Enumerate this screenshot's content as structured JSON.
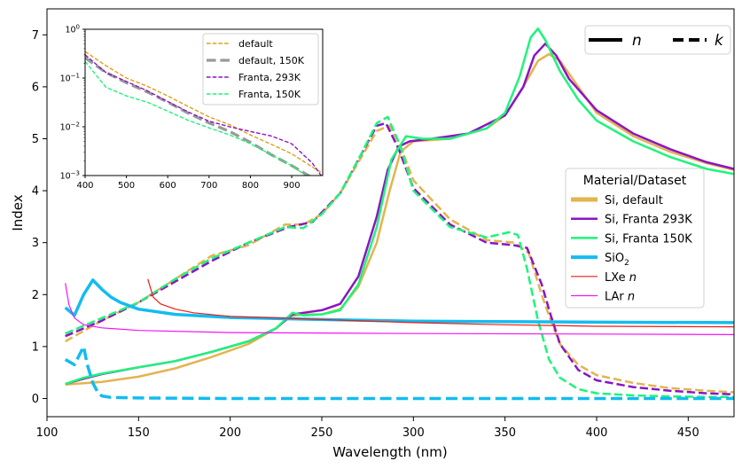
{
  "chart_data": [
    {
      "type": "line",
      "xlabel": "Wavelength (nm)",
      "ylabel": "Index",
      "xlim": [
        100,
        475
      ],
      "ylim": [
        -0.35,
        7.5
      ],
      "xticks": [
        100,
        150,
        200,
        250,
        300,
        350,
        400,
        450
      ],
      "yticks": [
        0,
        1,
        2,
        3,
        4,
        5,
        6,
        7
      ],
      "style_legend": {
        "position": "top-right",
        "entries": [
          {
            "label": "n",
            "style": "solid"
          },
          {
            "label": "k",
            "style": "dashed"
          }
        ]
      },
      "material_legend": {
        "title": "Material/Dataset",
        "position": "center-right",
        "entries": [
          {
            "label": "Si, default",
            "color": "#e3b44f"
          },
          {
            "label": "Si, Franta 293K",
            "color": "#8b14c4"
          },
          {
            "label": "Si, Franta 150K",
            "color": "#1ef47a"
          },
          {
            "label": "SiO",
            "sub": "2",
            "color": "#12bcf0"
          },
          {
            "label": "LXe ",
            "italic": "n",
            "color": "#ee1b14"
          },
          {
            "label": "LAr ",
            "italic": "n",
            "color": "#f414f4"
          }
        ]
      },
      "series": [
        {
          "name": "Si, default n",
          "color": "#e3b44f",
          "dash": "solid",
          "x": [
            110,
            130,
            150,
            170,
            190,
            210,
            225,
            232,
            240,
            250,
            260,
            270,
            280,
            287,
            293,
            300,
            320,
            340,
            350,
            360,
            368,
            374,
            380,
            390,
            400,
            420,
            440,
            460,
            475
          ],
          "y": [
            0.27,
            0.32,
            0.42,
            0.58,
            0.8,
            1.05,
            1.35,
            1.58,
            1.62,
            1.62,
            1.72,
            2.15,
            3.0,
            4.0,
            4.75,
            4.95,
            5.0,
            5.2,
            5.45,
            6.0,
            6.5,
            6.63,
            6.5,
            6.0,
            5.5,
            5.05,
            4.75,
            4.53,
            4.4
          ]
        },
        {
          "name": "Si, default k",
          "color": "#e3b44f",
          "dash": "dashed",
          "x": [
            110,
            130,
            150,
            170,
            190,
            210,
            230,
            240,
            250,
            260,
            270,
            280,
            287,
            293,
            300,
            320,
            340,
            355,
            363,
            370,
            375,
            380,
            390,
            400,
            420,
            440,
            460,
            475
          ],
          "y": [
            1.1,
            1.5,
            1.85,
            2.3,
            2.75,
            2.95,
            3.35,
            3.35,
            3.55,
            3.95,
            4.55,
            5.15,
            5.25,
            4.85,
            4.2,
            3.45,
            3.05,
            3.0,
            2.8,
            2.0,
            1.5,
            1.05,
            0.65,
            0.45,
            0.3,
            0.2,
            0.15,
            0.12
          ]
        },
        {
          "name": "Si, Franta 293K n",
          "color": "#8b14c4",
          "dash": "solid",
          "x": [
            110,
            120,
            130,
            150,
            170,
            190,
            210,
            225,
            234,
            240,
            250,
            260,
            270,
            280,
            286,
            292,
            298,
            310,
            330,
            350,
            360,
            366,
            372,
            378,
            385,
            400,
            420,
            440,
            460,
            475
          ],
          "y": [
            0.28,
            0.38,
            0.47,
            0.6,
            0.72,
            0.9,
            1.1,
            1.35,
            1.62,
            1.65,
            1.7,
            1.82,
            2.35,
            3.5,
            4.4,
            4.85,
            4.95,
            5.0,
            5.1,
            5.45,
            6.0,
            6.6,
            6.83,
            6.6,
            6.15,
            5.55,
            5.1,
            4.8,
            4.55,
            4.42
          ]
        },
        {
          "name": "Si, Franta 293K k",
          "color": "#8b14c4",
          "dash": "dashed",
          "x": [
            110,
            130,
            150,
            170,
            190,
            210,
            232,
            245,
            260,
            270,
            280,
            285,
            292,
            300,
            320,
            340,
            355,
            362,
            370,
            375,
            380,
            390,
            400,
            420,
            440,
            460,
            475
          ],
          "y": [
            1.2,
            1.5,
            1.85,
            2.25,
            2.65,
            3.0,
            3.3,
            3.4,
            3.95,
            4.6,
            5.25,
            5.3,
            4.8,
            4.05,
            3.35,
            3.0,
            2.95,
            2.9,
            2.2,
            1.6,
            1.05,
            0.55,
            0.35,
            0.22,
            0.15,
            0.1,
            0.08
          ]
        },
        {
          "name": "Si, Franta 150K n",
          "color": "#1ef47a",
          "dash": "solid",
          "x": [
            110,
            120,
            130,
            150,
            170,
            190,
            210,
            225,
            234,
            240,
            250,
            260,
            270,
            280,
            288,
            296,
            305,
            320,
            340,
            350,
            358,
            364,
            368,
            372,
            380,
            390,
            400,
            420,
            440,
            460,
            475
          ],
          "y": [
            0.28,
            0.4,
            0.48,
            0.6,
            0.72,
            0.9,
            1.1,
            1.35,
            1.65,
            1.6,
            1.62,
            1.7,
            2.2,
            3.3,
            4.6,
            5.05,
            5.0,
            5.0,
            5.2,
            5.5,
            6.2,
            6.95,
            7.12,
            6.9,
            6.3,
            5.75,
            5.35,
            4.95,
            4.65,
            4.42,
            4.32
          ]
        },
        {
          "name": "Si, Franta 150K k",
          "color": "#1ef47a",
          "dash": "dashed",
          "x": [
            110,
            130,
            150,
            170,
            190,
            210,
            230,
            240,
            250,
            260,
            270,
            280,
            286,
            293,
            300,
            320,
            340,
            352,
            357,
            362,
            368,
            374,
            380,
            390,
            400,
            420,
            440,
            460,
            475
          ],
          "y": [
            1.25,
            1.55,
            1.85,
            2.3,
            2.7,
            3.0,
            3.3,
            3.28,
            3.55,
            3.95,
            4.6,
            5.3,
            5.42,
            4.85,
            4.0,
            3.3,
            3.1,
            3.2,
            3.15,
            2.5,
            1.5,
            0.75,
            0.4,
            0.18,
            0.1,
            0.06,
            0.04,
            0.03,
            0.03
          ]
        },
        {
          "name": "SiO2 n",
          "color": "#12bcf0",
          "dash": "solid",
          "width": 3.5,
          "x": [
            110,
            115,
            120,
            125,
            130,
            135,
            140,
            150,
            170,
            200,
            250,
            300,
            400,
            475
          ],
          "y": [
            1.75,
            1.6,
            2.0,
            2.28,
            2.1,
            1.95,
            1.85,
            1.72,
            1.62,
            1.56,
            1.52,
            1.49,
            1.47,
            1.46
          ]
        },
        {
          "name": "SiO2 k",
          "color": "#12bcf0",
          "dash": "dashed",
          "width": 3.5,
          "x": [
            110,
            115,
            120,
            122,
            125,
            128,
            130,
            135,
            150,
            200,
            300,
            400,
            475
          ],
          "y": [
            0.75,
            0.65,
            1.0,
            0.65,
            0.3,
            0.1,
            0.05,
            0.02,
            0.01,
            0.0,
            0.0,
            0.0,
            0.0
          ]
        },
        {
          "name": "LXe n",
          "color": "#ee1b14",
          "dash": "solid",
          "width": 1.2,
          "x": [
            155,
            158,
            162,
            170,
            180,
            200,
            250,
            300,
            350,
            400,
            475
          ],
          "y": [
            2.3,
            1.95,
            1.82,
            1.72,
            1.65,
            1.58,
            1.52,
            1.46,
            1.42,
            1.39,
            1.38
          ]
        },
        {
          "name": "LAr n",
          "color": "#f414f4",
          "dash": "solid",
          "width": 1.2,
          "x": [
            110,
            112,
            115,
            120,
            130,
            150,
            200,
            300,
            400,
            475
          ],
          "y": [
            2.22,
            1.8,
            1.55,
            1.42,
            1.36,
            1.31,
            1.27,
            1.25,
            1.24,
            1.23
          ]
        }
      ]
    },
    {
      "type": "line",
      "inset": true,
      "yscale": "log",
      "xlim": [
        400,
        975
      ],
      "ylim": [
        0.001,
        1
      ],
      "xticks": [
        400,
        500,
        600,
        700,
        800,
        900
      ],
      "yticks": [
        {
          "base": "10",
          "exp": "0",
          "value": 1
        },
        {
          "base": "10",
          "exp": "−1",
          "value": 0.1
        },
        {
          "base": "10",
          "exp": "−2",
          "value": 0.01
        },
        {
          "base": "10",
          "exp": "−3",
          "value": 0.001
        }
      ],
      "legend": [
        "default",
        "default, 150K",
        "Franta, 293K",
        "Franta, 150K"
      ],
      "series": [
        {
          "name": "default",
          "color": "#dba21a",
          "width": 1.4,
          "x": [
            400,
            450,
            500,
            550,
            600,
            650,
            700,
            750,
            800,
            850,
            900,
            950,
            975
          ],
          "y": [
            0.35,
            0.18,
            0.1,
            0.068,
            0.043,
            0.026,
            0.016,
            0.011,
            0.0068,
            0.0044,
            0.0028,
            0.0015,
            0.0011
          ]
        },
        {
          "name": "default, 150K",
          "color": "#999999",
          "width": 3.2,
          "x": [
            400,
            450,
            500,
            550,
            600,
            650,
            700,
            750,
            800,
            850,
            900,
            950
          ],
          "y": [
            0.26,
            0.13,
            0.08,
            0.052,
            0.032,
            0.019,
            0.012,
            0.008,
            0.0048,
            0.0027,
            0.0016,
            0.0009
          ]
        },
        {
          "name": "Franta, 293K",
          "color": "#8b14c4",
          "width": 1.4,
          "x": [
            400,
            450,
            500,
            550,
            600,
            650,
            700,
            750,
            800,
            850,
            900,
            950,
            975
          ],
          "y": [
            0.3,
            0.13,
            0.085,
            0.055,
            0.033,
            0.02,
            0.013,
            0.01,
            0.008,
            0.0065,
            0.0045,
            0.0018,
            0.0009
          ]
        },
        {
          "name": "Franta, 150K",
          "color": "#1ef47a",
          "width": 1.4,
          "x": [
            400,
            450,
            500,
            550,
            600,
            650,
            700,
            750,
            800,
            850,
            900,
            950
          ],
          "y": [
            0.22,
            0.065,
            0.043,
            0.032,
            0.021,
            0.0135,
            0.0095,
            0.0068,
            0.0045,
            0.0027,
            0.0016,
            0.0008
          ]
        }
      ]
    }
  ]
}
